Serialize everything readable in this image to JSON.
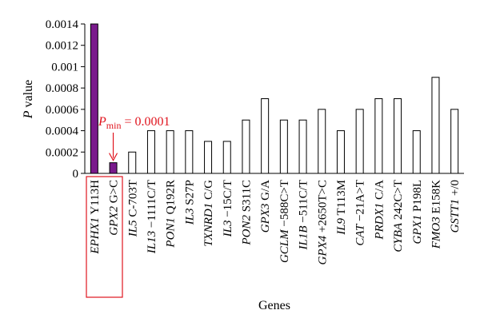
{
  "chart_data": {
    "type": "bar",
    "ylabel_italic": "P",
    "ylabel_rest": "value",
    "xlabel": "Genes",
    "ylim": [
      0,
      0.0014
    ],
    "yticks": [
      "0",
      "0.0002",
      "0.0004",
      "0.0006",
      "0.0008",
      "0.001",
      "0.0012",
      "0.0014"
    ],
    "grid": false,
    "categories": [
      {
        "gene": "EPHX1",
        "variant": "Y113H"
      },
      {
        "gene": "GPX2",
        "variant": "G>C"
      },
      {
        "gene": "IL5",
        "variant": "C-703T"
      },
      {
        "gene": "IL13",
        "variant": "−1111C/T"
      },
      {
        "gene": "PON1",
        "variant": "Q192R"
      },
      {
        "gene": "IL3",
        "variant": "S27P"
      },
      {
        "gene": "TXNRD1",
        "variant": "C/G"
      },
      {
        "gene": "IL3",
        "variant": "−15C/T"
      },
      {
        "gene": "PON2",
        "variant": "S311C"
      },
      {
        "gene": "GPX3",
        "variant": "G/A"
      },
      {
        "gene": "GCLM",
        "variant": "−588C>T"
      },
      {
        "gene": "IL1B",
        "variant": "−511C/T"
      },
      {
        "gene": "GPX4",
        "variant": "+2650T>C"
      },
      {
        "gene": "IL9",
        "variant": "T113M"
      },
      {
        "gene": "CAT",
        "variant": "−21A>T"
      },
      {
        "gene": "PRDX1",
        "variant": "C/A"
      },
      {
        "gene": "CYBA",
        "variant": "242C>T"
      },
      {
        "gene": "GPX1",
        "variant": "P198L"
      },
      {
        "gene": "FMO3",
        "variant": "E158K"
      },
      {
        "gene": "GSTT1",
        "variant": "+/0"
      }
    ],
    "values": [
      0.0014,
      0.0001,
      0.0002,
      0.0004,
      0.0004,
      0.0004,
      0.0003,
      0.0003,
      0.0005,
      0.0007,
      0.0005,
      0.0005,
      0.0006,
      0.0004,
      0.0006,
      0.0007,
      0.0007,
      0.0004,
      0.0009,
      0.0006
    ],
    "highlighted": [
      0,
      1
    ],
    "annotation": {
      "symbol": "P",
      "subscript": "min",
      "text": " = 0.0001",
      "target_index": 1
    },
    "colors": {
      "highlight_fill": "#7a1a8c",
      "bar_fill": "#ffffff",
      "bar_stroke": "#000000",
      "annotation": "#e0141e"
    }
  }
}
